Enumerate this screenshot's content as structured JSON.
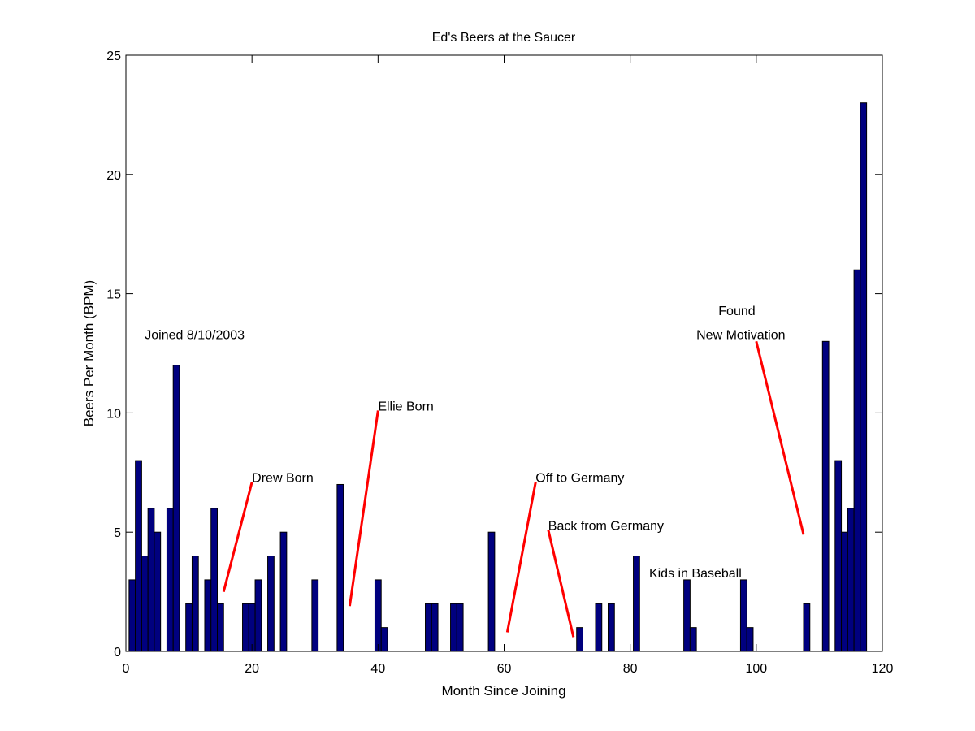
{
  "chart_data": {
    "type": "bar",
    "title": "Ed's Beers at the Saucer",
    "xlabel": "Month Since Joining",
    "ylabel": "Beers Per Month (BPM)",
    "xlim": [
      0,
      120
    ],
    "ylim": [
      0,
      25
    ],
    "x_ticks": [
      0,
      20,
      40,
      60,
      80,
      100,
      120
    ],
    "y_ticks": [
      0,
      5,
      10,
      15,
      20,
      25
    ],
    "grid": false,
    "bar_color": "#00007f",
    "annotation_line_color": "#ff0000",
    "x": [
      1,
      2,
      3,
      4,
      5,
      7,
      8,
      10,
      11,
      13,
      14,
      15,
      19,
      20,
      21,
      23,
      25,
      30,
      34,
      40,
      41,
      48,
      49,
      52,
      53,
      58,
      72,
      75,
      77,
      81,
      89,
      90,
      98,
      99,
      108,
      111,
      113,
      114,
      115,
      116,
      117
    ],
    "values": [
      3,
      8,
      4,
      6,
      5,
      6,
      12,
      2,
      4,
      3,
      6,
      2,
      2,
      2,
      3,
      4,
      5,
      3,
      7,
      3,
      1,
      2,
      2,
      2,
      2,
      5,
      1,
      2,
      2,
      4,
      3,
      1,
      3,
      1,
      2,
      13,
      8,
      5,
      6,
      16,
      23
    ],
    "annotations": [
      {
        "text": "Joined 8/10/2003",
        "x": 3,
        "y": 13.1
      },
      {
        "text": "Drew Born",
        "x": 20,
        "y": 7.1,
        "line": [
          [
            20,
            7.1
          ],
          [
            15.5,
            2.5
          ]
        ]
      },
      {
        "text": "Ellie Born",
        "x": 40,
        "y": 10.1,
        "line": [
          [
            40,
            10.1
          ],
          [
            35.5,
            1.9
          ]
        ]
      },
      {
        "text": "Off to Germany",
        "x": 65,
        "y": 7.1,
        "line": [
          [
            65,
            7.1
          ],
          [
            60.5,
            0.8
          ]
        ]
      },
      {
        "text": "Back from Germany",
        "x": 67,
        "y": 5.1,
        "line": [
          [
            67,
            5.1
          ],
          [
            71,
            0.6
          ]
        ]
      },
      {
        "text": "Kids in Baseball",
        "x": 83,
        "y": 3.1
      },
      {
        "text": "Found",
        "x": 94,
        "y": 14.1
      },
      {
        "text": "New Motivation",
        "x": 90.5,
        "y": 13.1,
        "line": [
          [
            100,
            13
          ],
          [
            107.5,
            4.9
          ]
        ]
      }
    ]
  }
}
